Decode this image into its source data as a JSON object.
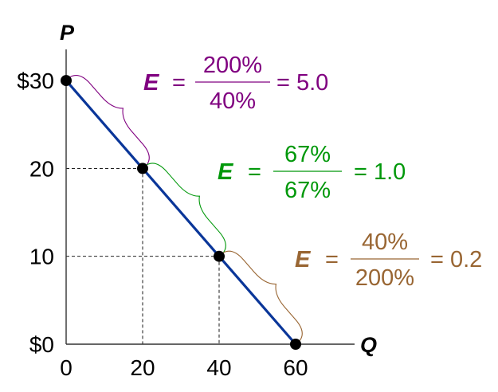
{
  "chart_data": {
    "type": "line",
    "title": "",
    "xlabel": "Q",
    "ylabel": "P",
    "xlim": [
      0,
      72
    ],
    "ylim": [
      0,
      33
    ],
    "x_ticks": [
      0,
      20,
      40,
      60
    ],
    "x_tick_labels": [
      "0",
      "20",
      "40",
      "60"
    ],
    "y_ticks": [
      0,
      10,
      20,
      30
    ],
    "y_tick_labels": [
      "$0",
      "10",
      "20",
      "$30"
    ],
    "series": [
      {
        "color": "#0a3699",
        "points": [
          {
            "x": 0,
            "y": 30
          },
          {
            "x": 20,
            "y": 20
          },
          {
            "x": 40,
            "y": 10
          },
          {
            "x": 60,
            "y": 0
          }
        ]
      }
    ],
    "guides": [
      {
        "x": 20,
        "y": 20
      },
      {
        "x": 40,
        "y": 10
      }
    ],
    "annotations": [
      {
        "segment": [
          0,
          1
        ],
        "color": "#800080",
        "label": "E",
        "eq": "=",
        "numerator": "200%",
        "denominator": "40%",
        "result": "= 5.0"
      },
      {
        "segment": [
          1,
          2
        ],
        "color": "#00980a",
        "label": "E",
        "eq": "=",
        "numerator": "67%",
        "denominator": "67%",
        "result": "= 1.0"
      },
      {
        "segment": [
          2,
          3
        ],
        "color": "#996633",
        "label": "E",
        "eq": "=",
        "numerator": "40%",
        "denominator": "200%",
        "result": "= 0.2"
      }
    ]
  }
}
